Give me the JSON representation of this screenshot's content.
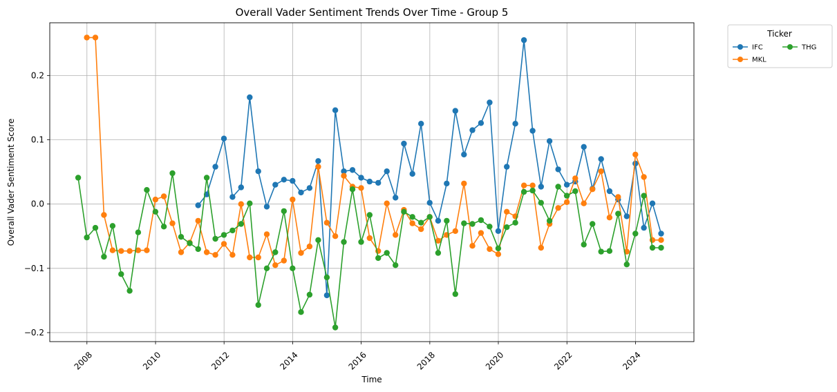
{
  "chart_data": {
    "type": "line",
    "title": "Overall Vader Sentiment Trends Over Time - Group 5",
    "xlabel": "Time",
    "ylabel": "Overall Vader Sentiment Score",
    "x_ticks": [
      "2008",
      "2010",
      "2012",
      "2014",
      "2016",
      "2018",
      "2020",
      "2022",
      "2024"
    ],
    "y_ticks": [
      "−0.2",
      "−0.1",
      "0.0",
      "0.1",
      "0.2"
    ],
    "xlim": [
      "2006-12-01",
      "2025-09-15"
    ],
    "ylim": [
      -0.214,
      0.282
    ],
    "grid": true,
    "legend": {
      "title": "Ticker",
      "placement": "outside-top-right",
      "columns": 2
    },
    "series": [
      {
        "name": "IFC",
        "color": "#1f77b4",
        "points": [
          [
            "2011-03-31",
            -0.002
          ],
          [
            "2011-06-30",
            0.015
          ],
          [
            "2011-09-30",
            0.058
          ],
          [
            "2011-12-31",
            0.102
          ],
          [
            "2012-03-31",
            0.011
          ],
          [
            "2012-06-30",
            0.026
          ],
          [
            "2012-09-30",
            0.166
          ],
          [
            "2012-12-31",
            0.051
          ],
          [
            "2013-03-31",
            -0.004
          ],
          [
            "2013-06-30",
            0.03
          ],
          [
            "2013-09-30",
            0.038
          ],
          [
            "2013-12-31",
            0.036
          ],
          [
            "2014-03-31",
            0.018
          ],
          [
            "2014-06-30",
            0.025
          ],
          [
            "2014-09-30",
            0.067
          ],
          [
            "2014-12-31",
            -0.142
          ],
          [
            "2015-03-31",
            0.146
          ],
          [
            "2015-06-30",
            0.051
          ],
          [
            "2015-09-30",
            0.053
          ],
          [
            "2015-12-31",
            0.041
          ],
          [
            "2016-03-31",
            0.035
          ],
          [
            "2016-06-30",
            0.033
          ],
          [
            "2016-09-30",
            0.051
          ],
          [
            "2016-12-31",
            0.01
          ],
          [
            "2017-03-31",
            0.094
          ],
          [
            "2017-06-30",
            0.047
          ],
          [
            "2017-09-30",
            0.125
          ],
          [
            "2017-12-31",
            0.002
          ],
          [
            "2018-03-31",
            -0.026
          ],
          [
            "2018-06-30",
            0.032
          ],
          [
            "2018-09-30",
            0.145
          ],
          [
            "2018-12-31",
            0.077
          ],
          [
            "2019-03-31",
            0.115
          ],
          [
            "2019-06-30",
            0.126
          ],
          [
            "2019-09-30",
            0.158
          ],
          [
            "2019-12-31",
            -0.042
          ],
          [
            "2020-03-31",
            0.058
          ],
          [
            "2020-06-30",
            0.125
          ],
          [
            "2020-09-30",
            0.255
          ],
          [
            "2020-12-31",
            0.114
          ],
          [
            "2021-03-31",
            0.027
          ],
          [
            "2021-06-30",
            0.098
          ],
          [
            "2021-09-30",
            0.054
          ],
          [
            "2021-12-31",
            0.03
          ],
          [
            "2022-03-31",
            0.035
          ],
          [
            "2022-06-30",
            0.089
          ],
          [
            "2022-09-30",
            0.024
          ],
          [
            "2022-12-31",
            0.07
          ],
          [
            "2023-03-31",
            0.02
          ],
          [
            "2023-06-30",
            0.007
          ],
          [
            "2023-09-30",
            -0.019
          ],
          [
            "2023-12-31",
            0.063
          ],
          [
            "2024-03-31",
            -0.037
          ],
          [
            "2024-06-30",
            0.001
          ],
          [
            "2024-09-30",
            -0.046
          ]
        ]
      },
      {
        "name": "MKL",
        "color": "#ff7f0e",
        "points": [
          [
            "2007-12-31",
            0.259
          ],
          [
            "2008-03-31",
            0.259
          ],
          [
            "2008-06-30",
            -0.017
          ],
          [
            "2008-09-30",
            -0.072
          ],
          [
            "2008-12-31",
            -0.073
          ],
          [
            "2009-03-31",
            -0.073
          ],
          [
            "2009-06-30",
            -0.072
          ],
          [
            "2009-09-30",
            -0.072
          ],
          [
            "2009-12-31",
            0.007
          ],
          [
            "2010-03-31",
            0.012
          ],
          [
            "2010-06-30",
            -0.03
          ],
          [
            "2010-09-30",
            -0.075
          ],
          [
            "2010-12-31",
            -0.06
          ],
          [
            "2011-03-31",
            -0.026
          ],
          [
            "2011-06-30",
            -0.075
          ],
          [
            "2011-09-30",
            -0.079
          ],
          [
            "2011-12-31",
            -0.062
          ],
          [
            "2012-03-31",
            -0.079
          ],
          [
            "2012-06-30",
            0.0
          ],
          [
            "2012-09-30",
            -0.083
          ],
          [
            "2012-12-31",
            -0.083
          ],
          [
            "2013-03-31",
            -0.047
          ],
          [
            "2013-06-30",
            -0.095
          ],
          [
            "2013-09-30",
            -0.088
          ],
          [
            "2013-12-31",
            0.007
          ],
          [
            "2014-03-31",
            -0.076
          ],
          [
            "2014-06-30",
            -0.066
          ],
          [
            "2014-09-30",
            0.058
          ],
          [
            "2014-12-31",
            -0.029
          ],
          [
            "2015-03-31",
            -0.05
          ],
          [
            "2015-06-30",
            0.044
          ],
          [
            "2015-09-30",
            0.027
          ],
          [
            "2015-12-31",
            0.025
          ],
          [
            "2016-03-31",
            -0.053
          ],
          [
            "2016-06-30",
            -0.073
          ],
          [
            "2016-09-30",
            0.001
          ],
          [
            "2016-12-31",
            -0.048
          ],
          [
            "2017-03-31",
            -0.009
          ],
          [
            "2017-06-30",
            -0.03
          ],
          [
            "2017-09-30",
            -0.039
          ],
          [
            "2017-12-31",
            -0.02
          ],
          [
            "2018-03-31",
            -0.057
          ],
          [
            "2018-06-30",
            -0.048
          ],
          [
            "2018-09-30",
            -0.042
          ],
          [
            "2018-12-31",
            0.032
          ],
          [
            "2019-03-31",
            -0.065
          ],
          [
            "2019-06-30",
            -0.045
          ],
          [
            "2019-09-30",
            -0.07
          ],
          [
            "2019-12-31",
            -0.078
          ],
          [
            "2020-03-31",
            -0.012
          ],
          [
            "2020-06-30",
            -0.019
          ],
          [
            "2020-09-30",
            0.029
          ],
          [
            "2020-12-31",
            0.029
          ],
          [
            "2021-03-31",
            -0.068
          ],
          [
            "2021-06-30",
            -0.031
          ],
          [
            "2021-09-30",
            -0.006
          ],
          [
            "2021-12-31",
            0.003
          ],
          [
            "2022-03-31",
            0.04
          ],
          [
            "2022-06-30",
            0.001
          ],
          [
            "2022-09-30",
            0.023
          ],
          [
            "2022-12-31",
            0.051
          ],
          [
            "2023-03-31",
            -0.021
          ],
          [
            "2023-06-30",
            0.011
          ],
          [
            "2023-09-30",
            -0.074
          ],
          [
            "2023-12-31",
            0.077
          ],
          [
            "2024-03-31",
            0.042
          ],
          [
            "2024-06-30",
            -0.056
          ],
          [
            "2024-09-30",
            -0.056
          ]
        ]
      },
      {
        "name": "THG",
        "color": "#2ca02c",
        "points": [
          [
            "2007-09-30",
            0.041
          ],
          [
            "2007-12-31",
            -0.052
          ],
          [
            "2008-03-31",
            -0.037
          ],
          [
            "2008-06-30",
            -0.082
          ],
          [
            "2008-09-30",
            -0.034
          ],
          [
            "2008-12-31",
            -0.109
          ],
          [
            "2009-03-31",
            -0.135
          ],
          [
            "2009-06-30",
            -0.044
          ],
          [
            "2009-09-30",
            0.022
          ],
          [
            "2009-12-31",
            -0.012
          ],
          [
            "2010-03-31",
            -0.035
          ],
          [
            "2010-06-30",
            0.048
          ],
          [
            "2010-09-30",
            -0.051
          ],
          [
            "2010-12-31",
            -0.061
          ],
          [
            "2011-03-31",
            -0.07
          ],
          [
            "2011-06-30",
            0.041
          ],
          [
            "2011-09-30",
            -0.054
          ],
          [
            "2011-12-31",
            -0.048
          ],
          [
            "2012-03-31",
            -0.041
          ],
          [
            "2012-06-30",
            -0.031
          ],
          [
            "2012-09-30",
            0.001
          ],
          [
            "2012-12-31",
            -0.157
          ],
          [
            "2013-03-31",
            -0.1
          ],
          [
            "2013-06-30",
            -0.075
          ],
          [
            "2013-09-30",
            -0.011
          ],
          [
            "2013-12-31",
            -0.1
          ],
          [
            "2014-03-31",
            -0.168
          ],
          [
            "2014-06-30",
            -0.141
          ],
          [
            "2014-09-30",
            -0.056
          ],
          [
            "2014-12-31",
            -0.114
          ],
          [
            "2015-03-31",
            -0.192
          ],
          [
            "2015-06-30",
            -0.059
          ],
          [
            "2015-09-30",
            0.023
          ],
          [
            "2015-12-31",
            -0.059
          ],
          [
            "2016-03-31",
            -0.017
          ],
          [
            "2016-06-30",
            -0.084
          ],
          [
            "2016-09-30",
            -0.076
          ],
          [
            "2016-12-31",
            -0.095
          ],
          [
            "2017-03-31",
            -0.012
          ],
          [
            "2017-06-30",
            -0.02
          ],
          [
            "2017-09-30",
            -0.029
          ],
          [
            "2017-12-31",
            -0.02
          ],
          [
            "2018-03-31",
            -0.076
          ],
          [
            "2018-06-30",
            -0.026
          ],
          [
            "2018-09-30",
            -0.14
          ],
          [
            "2018-12-31",
            -0.03
          ],
          [
            "2019-03-31",
            -0.031
          ],
          [
            "2019-06-30",
            -0.025
          ],
          [
            "2019-09-30",
            -0.035
          ],
          [
            "2019-12-31",
            -0.069
          ],
          [
            "2020-03-31",
            -0.036
          ],
          [
            "2020-06-30",
            -0.029
          ],
          [
            "2020-09-30",
            0.019
          ],
          [
            "2020-12-31",
            0.021
          ],
          [
            "2021-03-31",
            0.002
          ],
          [
            "2021-06-30",
            -0.026
          ],
          [
            "2021-09-30",
            0.027
          ],
          [
            "2021-12-31",
            0.013
          ],
          [
            "2022-03-31",
            0.02
          ],
          [
            "2022-06-30",
            -0.063
          ],
          [
            "2022-09-30",
            -0.031
          ],
          [
            "2022-12-31",
            -0.074
          ],
          [
            "2023-03-31",
            -0.073
          ],
          [
            "2023-06-30",
            -0.015
          ],
          [
            "2023-09-30",
            -0.094
          ],
          [
            "2023-12-31",
            -0.046
          ],
          [
            "2024-03-31",
            0.013
          ],
          [
            "2024-06-30",
            -0.068
          ],
          [
            "2024-09-30",
            -0.068
          ]
        ]
      }
    ]
  }
}
